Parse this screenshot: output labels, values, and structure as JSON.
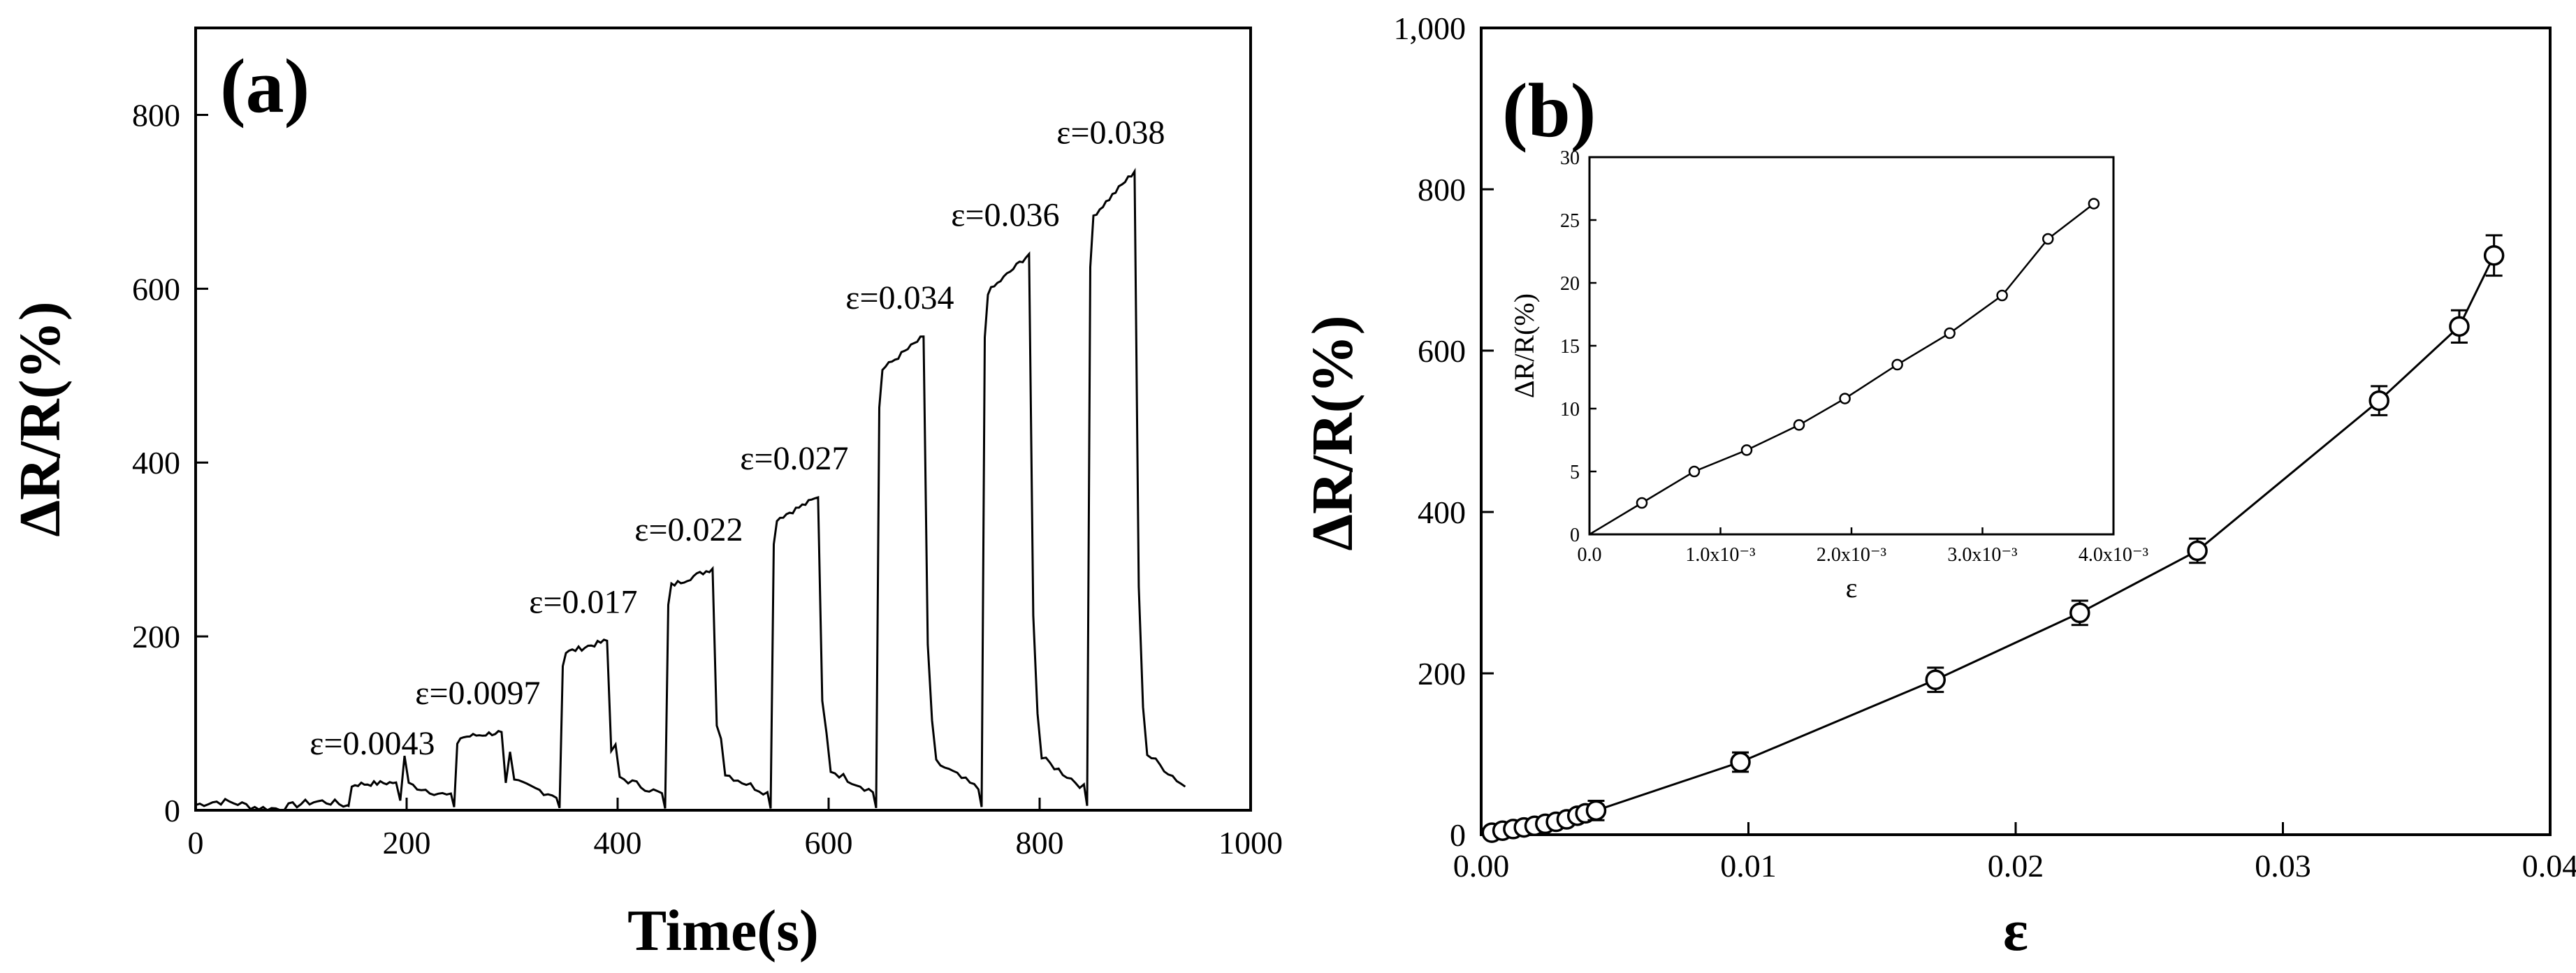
{
  "chart_data": [
    {
      "type": "line",
      "panel_label": "(a)",
      "xlabel": "Time(s)",
      "ylabel": "ΔR/R(%)",
      "xlim": [
        0,
        1000
      ],
      "ylim": [
        0,
        900
      ],
      "x_ticks": [
        "0",
        "200",
        "400",
        "600",
        "800",
        "1000"
      ],
      "y_ticks": [
        "0",
        "200",
        "400",
        "600",
        "800"
      ],
      "steps": [
        {
          "label": "ε=0.0043",
          "start": 145,
          "end": 190,
          "value": 32
        },
        {
          "label": "ε=0.0097",
          "start": 245,
          "end": 290,
          "value": 90
        },
        {
          "label": "ε=0.017",
          "start": 345,
          "end": 390,
          "value": 195
        },
        {
          "label": "ε=0.022",
          "start": 445,
          "end": 490,
          "value": 278
        },
        {
          "label": "ε=0.027",
          "start": 545,
          "end": 590,
          "value": 360
        },
        {
          "label": "ε=0.034",
          "start": 645,
          "end": 690,
          "value": 545
        },
        {
          "label": "ε=0.036",
          "start": 745,
          "end": 790,
          "value": 640
        },
        {
          "label": "ε=0.038",
          "start": 845,
          "end": 890,
          "value": 735
        }
      ],
      "x_end": 940
    },
    {
      "type": "scatter",
      "panel_label": "(b)",
      "xlabel": "ε",
      "ylabel": "ΔR/R(%)",
      "xlim": [
        0,
        0.04
      ],
      "ylim": [
        0,
        1000
      ],
      "x_ticks": [
        "0.00",
        "0.01",
        "0.02",
        "0.03",
        "0.04"
      ],
      "y_ticks": [
        "0",
        "200",
        "400",
        "600",
        "800",
        "1,000"
      ],
      "points": [
        {
          "x": 0.0004,
          "y": 2.5,
          "err": 3
        },
        {
          "x": 0.0008,
          "y": 5,
          "err": 3
        },
        {
          "x": 0.0012,
          "y": 7,
          "err": 3
        },
        {
          "x": 0.0016,
          "y": 9,
          "err": 3
        },
        {
          "x": 0.002,
          "y": 11,
          "err": 3
        },
        {
          "x": 0.0024,
          "y": 13.5,
          "err": 3
        },
        {
          "x": 0.0028,
          "y": 16,
          "err": 3
        },
        {
          "x": 0.0032,
          "y": 19,
          "err": 3
        },
        {
          "x": 0.0036,
          "y": 23.5,
          "err": 4
        },
        {
          "x": 0.0039,
          "y": 26.5,
          "err": 4
        },
        {
          "x": 0.0043,
          "y": 30,
          "err": 12
        },
        {
          "x": 0.0097,
          "y": 90,
          "err": 12
        },
        {
          "x": 0.017,
          "y": 192,
          "err": 15
        },
        {
          "x": 0.0224,
          "y": 275,
          "err": 15
        },
        {
          "x": 0.0268,
          "y": 352,
          "err": 15
        },
        {
          "x": 0.0336,
          "y": 538,
          "err": 18
        },
        {
          "x": 0.0366,
          "y": 630,
          "err": 20
        },
        {
          "x": 0.0379,
          "y": 718,
          "err": 25
        }
      ],
      "inset": {
        "xlabel": "ε",
        "ylabel": "ΔR/R(%)",
        "xlim": [
          0,
          0.004
        ],
        "ylim": [
          0,
          30
        ],
        "x_ticks": [
          "0.0",
          "1.0x10⁻³",
          "2.0x10⁻³",
          "3.0x10⁻³",
          "4.0x10⁻³"
        ],
        "y_ticks": [
          "0",
          "5",
          "10",
          "15",
          "20",
          "25",
          "30"
        ],
        "points": [
          {
            "x": 0.0,
            "y": 0
          },
          {
            "x": 0.0004,
            "y": 2.5
          },
          {
            "x": 0.0008,
            "y": 5
          },
          {
            "x": 0.0012,
            "y": 6.7
          },
          {
            "x": 0.0016,
            "y": 8.7
          },
          {
            "x": 0.00195,
            "y": 10.8
          },
          {
            "x": 0.00235,
            "y": 13.5
          },
          {
            "x": 0.00275,
            "y": 16
          },
          {
            "x": 0.00315,
            "y": 19
          },
          {
            "x": 0.0035,
            "y": 23.5
          },
          {
            "x": 0.00385,
            "y": 26.3
          }
        ]
      }
    }
  ]
}
